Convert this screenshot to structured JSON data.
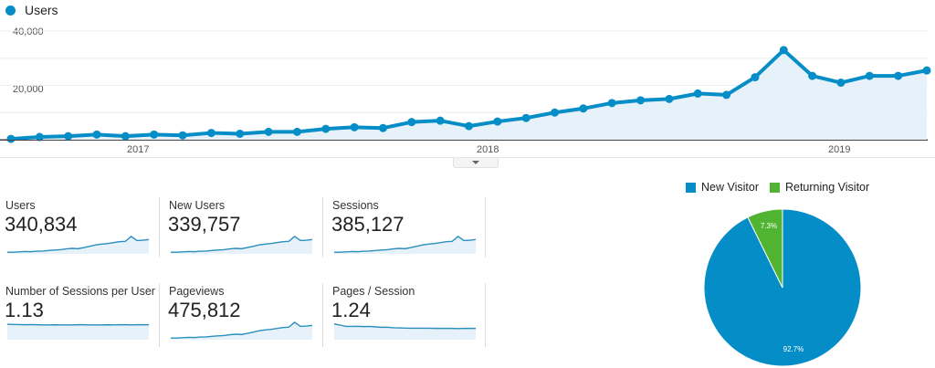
{
  "chart_data": [
    {
      "type": "line",
      "title": "",
      "legend": [
        "Users"
      ],
      "xlabel": "",
      "ylabel": "",
      "ylim": [
        0,
        40000
      ],
      "yticks": [
        "20,000",
        "40,000"
      ],
      "xticks": [
        "2017",
        "2018",
        "2019"
      ],
      "grid": true,
      "area_fill": true,
      "series": [
        {
          "name": "Users",
          "color": "#058dc7",
          "values": [
            300,
            1000,
            1300,
            1900,
            1300,
            1900,
            1600,
            2500,
            2200,
            2900,
            2900,
            4000,
            4600,
            4300,
            6500,
            7000,
            5000,
            6700,
            8000,
            10000,
            11500,
            13500,
            14500,
            15000,
            17000,
            16500,
            23000,
            33000,
            23500,
            21000,
            23500,
            23500,
            25500
          ]
        }
      ]
    },
    {
      "type": "pie",
      "title": "",
      "legend_position": "top",
      "categories": [
        "New Visitor",
        "Returning Visitor"
      ],
      "values": [
        92.7,
        7.3
      ],
      "labels": [
        "92.7%",
        "7.3%"
      ],
      "colors": [
        "#058dc7",
        "#50b432"
      ]
    }
  ],
  "header": {
    "legend_label": "Users",
    "legend_color": "#058dc7"
  },
  "axis": {
    "y_ticks": [
      "40,000",
      "20,000"
    ],
    "x_ticks": [
      "2017",
      "2018",
      "2019"
    ]
  },
  "metrics": [
    {
      "label": "Users",
      "value": "340,834",
      "spark": [
        1,
        1,
        1.2,
        1.4,
        1.3,
        1.6,
        1.7,
        2,
        2.3,
        2.5,
        3,
        3.3,
        3.1,
        3.8,
        4.6,
        5.4,
        5.9,
        6.2,
        6.8,
        7.3,
        7.5,
        10.5,
        8,
        8.2,
        8.6
      ]
    },
    {
      "label": "New Users",
      "value": "339,757",
      "spark": [
        1,
        1,
        1.2,
        1.4,
        1.3,
        1.6,
        1.7,
        2,
        2.3,
        2.5,
        3,
        3.3,
        3.1,
        3.8,
        4.6,
        5.4,
        5.9,
        6.2,
        6.8,
        7.3,
        7.5,
        10.5,
        8,
        8.2,
        8.6
      ]
    },
    {
      "label": "Sessions",
      "value": "385,127",
      "spark": [
        1,
        1,
        1.2,
        1.4,
        1.3,
        1.6,
        1.7,
        2,
        2.3,
        2.5,
        3,
        3.3,
        3.1,
        3.8,
        4.6,
        5.4,
        5.9,
        6.2,
        6.8,
        7.3,
        7.5,
        10.5,
        8,
        8.2,
        8.6
      ]
    },
    {
      "label": "Number of Sessions per User",
      "value": "1.13",
      "spark": [
        9.3,
        9.2,
        9.1,
        9.0,
        9.1,
        9.0,
        8.9,
        8.9,
        9.0,
        8.9,
        8.9,
        8.9,
        9.0,
        9.0,
        8.9,
        8.9,
        8.9,
        9.0,
        8.9,
        9.0,
        9.0,
        8.9,
        9.0,
        9.0,
        9.0
      ]
    },
    {
      "label": "Pageviews",
      "value": "475,812",
      "spark": [
        1,
        1,
        1.2,
        1.4,
        1.3,
        1.6,
        1.7,
        2,
        2.3,
        2.5,
        3,
        3.3,
        3.1,
        3.8,
        4.6,
        5.4,
        5.9,
        6.2,
        6.8,
        7.3,
        7.5,
        10.5,
        8,
        8.2,
        8.6
      ]
    },
    {
      "label": "Pages / Session",
      "value": "1.24",
      "spark": [
        9.5,
        8.8,
        8.0,
        8.0,
        8.1,
        7.9,
        8.0,
        7.7,
        7.5,
        7.5,
        7.2,
        7.1,
        7.0,
        6.9,
        6.9,
        6.9,
        6.9,
        6.8,
        6.8,
        6.8,
        6.8,
        6.7,
        6.8,
        6.8,
        6.8
      ]
    }
  ],
  "pie_legend": [
    {
      "label": "New Visitor",
      "color": "#058dc7"
    },
    {
      "label": "Returning Visitor",
      "color": "#50b432"
    }
  ],
  "pie_labels": {
    "new": "92.7%",
    "returning": "7.3%"
  }
}
